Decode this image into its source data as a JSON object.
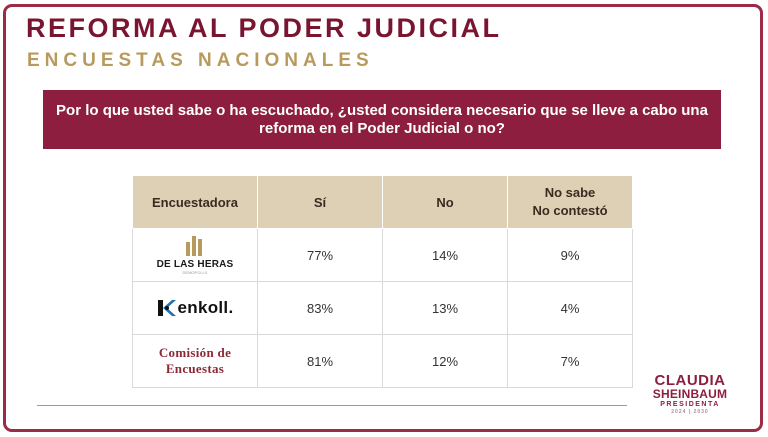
{
  "header": {
    "title": "REFORMA AL PODER JUDICIAL",
    "subtitle": "ENCUESTAS NACIONALES"
  },
  "question": "Por lo que usted sabe o ha escuchado, ¿usted considera necesario que se lleve a cabo una reforma en el Poder Judicial o no?",
  "table": {
    "headers": {
      "pollster": "Encuestadora",
      "yes": "Sí",
      "no": "No",
      "dont_know_1": "No sabe",
      "dont_know_2": "No contestó"
    },
    "rows": [
      {
        "pollster": "DE LAS HERAS",
        "pollster_sub": "DEMOPOLLS",
        "yes": "77%",
        "no": "14%",
        "dont_know": "9%"
      },
      {
        "pollster": "enkoll.",
        "yes": "83%",
        "no": "13%",
        "dont_know": "4%"
      },
      {
        "pollster_line1": "Comisión de",
        "pollster_line2": "Encuestas",
        "yes": "81%",
        "no": "12%",
        "dont_know": "7%"
      }
    ]
  },
  "brand": {
    "line1": "CLAUDIA",
    "line2": "SHEINBAUM",
    "line3": "PRESIDENTA",
    "line4": "2024 | 2030"
  },
  "colors": {
    "primary": "#8e1e3f",
    "gold": "#b99a5e",
    "header_bg": "#ddd0b4"
  }
}
